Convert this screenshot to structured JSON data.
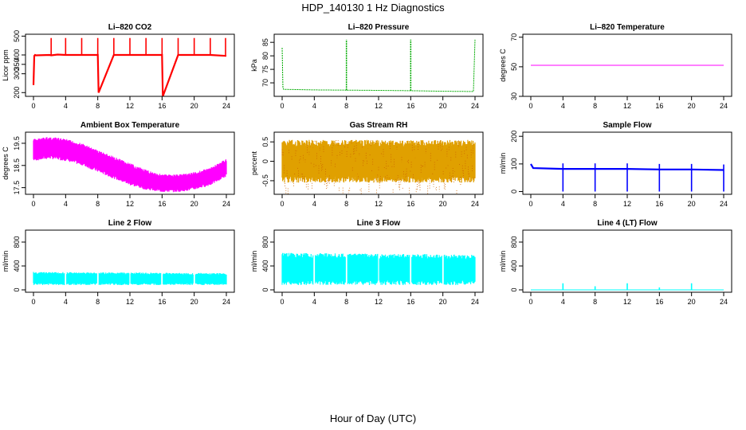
{
  "title": "HDP_140130  1 Hz Diagnostics",
  "xlabel": "Hour of Day (UTC)",
  "chart_data": [
    {
      "id": "co2",
      "type": "line",
      "title": "Li–820 CO2",
      "ylabel": "Licor ppm",
      "color": "#ff0000",
      "xlim": [
        0,
        24
      ],
      "xticks": [
        0,
        4,
        8,
        12,
        16,
        20,
        24
      ],
      "ylim": [
        180,
        510
      ],
      "yticks": [
        200,
        300,
        350,
        400,
        500
      ],
      "series": [
        {
          "x": [
            0,
            0.1,
            0.2,
            0.3,
            2,
            2.2,
            3,
            4,
            6,
            8,
            8.1,
            10,
            12,
            14,
            16,
            16.1,
            18,
            20,
            22,
            24
          ],
          "y": [
            240,
            395,
            400,
            398,
            400,
            398,
            402,
            400,
            400,
            400,
            200,
            400,
            400,
            400,
            400,
            180,
            400,
            400,
            400,
            395
          ]
        }
      ],
      "spikes_x": [
        2.2,
        4,
        6,
        8,
        10,
        12,
        14,
        16,
        18,
        20,
        22,
        23.9
      ],
      "spike_top": 490
    },
    {
      "id": "pressure",
      "type": "line",
      "title": "Li–820 Pressure",
      "ylabel": "kPa",
      "color": "#00aa00",
      "xlim": [
        0,
        24
      ],
      "xticks": [
        0,
        4,
        8,
        12,
        16,
        20,
        24
      ],
      "ylim": [
        65,
        88
      ],
      "yticks": [
        70,
        75,
        80,
        85
      ],
      "series": [
        {
          "x": [
            0,
            0.1,
            0.2,
            4,
            8,
            12,
            16,
            20,
            23.8,
            24
          ],
          "y": [
            83,
            68,
            67.6,
            67.4,
            67.3,
            67.2,
            67.1,
            66.9,
            66.8,
            86
          ]
        }
      ],
      "spikes_x": [
        8,
        16
      ],
      "spike_top": 86
    },
    {
      "id": "temperature",
      "type": "line",
      "title": "Li–820 Temperature",
      "ylabel": "degrees C",
      "color": "#ff00ff",
      "xlim": [
        0,
        24
      ],
      "xticks": [
        0,
        4,
        8,
        12,
        16,
        20,
        24
      ],
      "ylim": [
        30,
        72
      ],
      "yticks": [
        30,
        50,
        70
      ],
      "series": [
        {
          "x": [
            0,
            24
          ],
          "y": [
            51,
            51
          ]
        }
      ]
    },
    {
      "id": "ambient",
      "type": "area",
      "title": "Ambient Box Temperature",
      "ylabel": "degrees C",
      "color": "#ff00ff",
      "xlim": [
        0,
        24
      ],
      "xticks": [
        0,
        4,
        8,
        12,
        16,
        20,
        24
      ],
      "ylim": [
        17.2,
        20.0
      ],
      "yticks": [
        17.5,
        18.5,
        19.5
      ],
      "x": [
        0,
        2,
        4,
        6,
        8,
        10,
        12,
        14,
        16,
        18,
        20,
        22,
        24
      ],
      "upper": [
        19.7,
        19.8,
        19.7,
        19.5,
        19.2,
        18.9,
        18.6,
        18.3,
        18.1,
        18.1,
        18.2,
        18.4,
        18.8
      ],
      "lower": [
        18.7,
        18.8,
        18.7,
        18.5,
        18.2,
        17.9,
        17.6,
        17.4,
        17.3,
        17.3,
        17.4,
        17.6,
        18.0
      ]
    },
    {
      "id": "rh",
      "type": "area",
      "title": "Gas Stream RH",
      "ylabel": "percent",
      "color": "#e0a000",
      "xlim": [
        0,
        24
      ],
      "xticks": [
        0,
        4,
        8,
        12,
        16,
        20,
        24
      ],
      "ylim": [
        -0.85,
        0.75
      ],
      "yticks": [
        -0.5,
        0,
        0.5
      ],
      "x": [
        0,
        24
      ],
      "upper": [
        0.55,
        0.55
      ],
      "lower": [
        -0.55,
        -0.55
      ]
    },
    {
      "id": "sampleflow",
      "type": "line",
      "title": "Sample Flow",
      "ylabel": "ml/min",
      "color": "#0000ff",
      "xlim": [
        0,
        24
      ],
      "xticks": [
        0,
        4,
        8,
        12,
        16,
        20,
        24
      ],
      "ylim": [
        -10,
        215
      ],
      "yticks": [
        0,
        100,
        200
      ],
      "series": [
        {
          "x": [
            0,
            0.3,
            4,
            8,
            12,
            16,
            20,
            24
          ],
          "y": [
            100,
            85,
            82,
            82,
            82,
            80,
            80,
            78
          ]
        }
      ],
      "dips_x": [
        4,
        8,
        12,
        16,
        20,
        24
      ],
      "dip_bottom": 0
    },
    {
      "id": "line2",
      "type": "area",
      "title": "Line 2 Flow",
      "ylabel": "ml/min",
      "color": "#00ffff",
      "xlim": [
        0,
        24
      ],
      "xticks": [
        0,
        4,
        8,
        12,
        16,
        20,
        24
      ],
      "ylim": [
        -40,
        1000
      ],
      "yticks": [
        0,
        400,
        800
      ],
      "x": [
        0,
        24
      ],
      "upper": [
        300,
        280
      ],
      "lower": [
        80,
        80
      ],
      "gaps_x": [
        4,
        8,
        12,
        16,
        20
      ]
    },
    {
      "id": "line3",
      "type": "area",
      "title": "Line 3 Flow",
      "ylabel": "ml/min",
      "color": "#00ffff",
      "xlim": [
        0,
        24
      ],
      "xticks": [
        0,
        4,
        8,
        12,
        16,
        20,
        24
      ],
      "ylim": [
        -40,
        1000
      ],
      "yticks": [
        0,
        400,
        800
      ],
      "x": [
        0,
        24
      ],
      "upper": [
        620,
        590
      ],
      "lower": [
        80,
        80
      ],
      "gaps_x": [
        4,
        8,
        12,
        16,
        20
      ]
    },
    {
      "id": "line4",
      "type": "line",
      "title": "Line 4 (LT) Flow",
      "ylabel": "ml/min",
      "color": "#00ffff",
      "xlim": [
        0,
        24
      ],
      "xticks": [
        0,
        4,
        8,
        12,
        16,
        20,
        24
      ],
      "ylim": [
        -40,
        1000
      ],
      "yticks": [
        0,
        400,
        800
      ],
      "series": [
        {
          "x": [
            0,
            24
          ],
          "y": [
            0,
            0
          ]
        }
      ],
      "spikes_x": [
        4,
        8,
        12,
        16,
        20
      ],
      "spike_tops": [
        110,
        60,
        110,
        40,
        110
      ]
    }
  ]
}
